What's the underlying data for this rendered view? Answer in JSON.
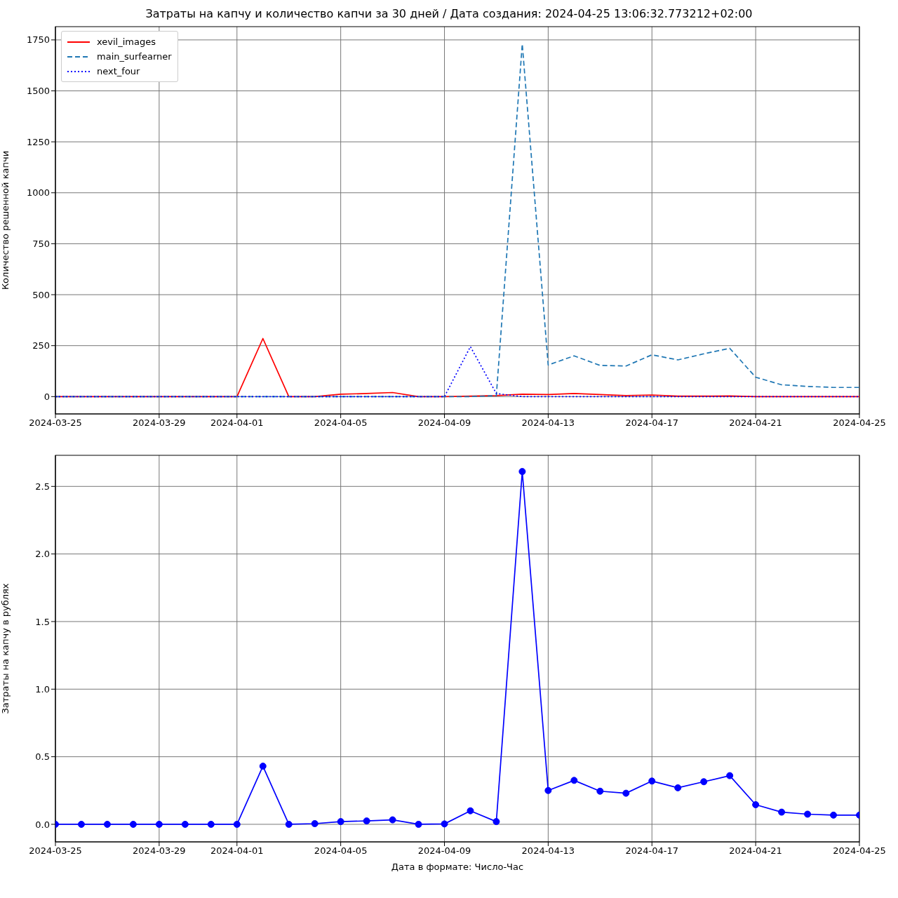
{
  "chart_data": [
    {
      "type": "line",
      "title": "Затраты на капчу и количество капчи за 30 дней / Дата создания:  2024-04-25 13:06:32.773212+02:00",
      "ylabel": "Количество решенной капчи",
      "x": [
        "2024-03-25",
        "2024-03-26",
        "2024-03-27",
        "2024-03-28",
        "2024-03-29",
        "2024-03-30",
        "2024-03-31",
        "2024-04-01",
        "2024-04-02",
        "2024-04-03",
        "2024-04-04",
        "2024-04-05",
        "2024-04-06",
        "2024-04-07",
        "2024-04-08",
        "2024-04-09",
        "2024-04-10",
        "2024-04-11",
        "2024-04-12",
        "2024-04-13",
        "2024-04-14",
        "2024-04-15",
        "2024-04-16",
        "2024-04-17",
        "2024-04-18",
        "2024-04-19",
        "2024-04-20",
        "2024-04-21",
        "2024-04-22",
        "2024-04-23",
        "2024-04-24",
        "2024-04-25"
      ],
      "series": [
        {
          "name": "xevil_images",
          "color": "#ff0000",
          "line_style": "solid",
          "values": [
            0,
            0,
            0,
            0,
            0,
            0,
            0,
            0,
            285,
            0,
            0,
            12,
            15,
            20,
            0,
            0,
            2,
            5,
            12,
            10,
            15,
            10,
            5,
            8,
            2,
            2,
            3,
            0,
            0,
            0,
            0,
            0
          ]
        },
        {
          "name": "main_surfearner",
          "color": "#1f77b4",
          "line_style": "dashed",
          "values": [
            0,
            0,
            0,
            0,
            0,
            0,
            0,
            0,
            0,
            0,
            0,
            0,
            0,
            0,
            0,
            0,
            0,
            5,
            1730,
            155,
            200,
            153,
            150,
            205,
            180,
            210,
            237,
            95,
            58,
            50,
            45,
            45
          ]
        },
        {
          "name": "next_four",
          "color": "#0000ff",
          "line_style": "dotted",
          "values": [
            0,
            0,
            0,
            0,
            0,
            0,
            0,
            0,
            0,
            0,
            0,
            0,
            0,
            0,
            0,
            0,
            245,
            15,
            0,
            0,
            0,
            0,
            0,
            0,
            0,
            0,
            0,
            0,
            0,
            0,
            0,
            0
          ]
        }
      ],
      "xlim": [
        "2024-03-25",
        "2024-04-25"
      ],
      "xticks": [
        "2024-03-25",
        "2024-03-29",
        "2024-04-01",
        "2024-04-05",
        "2024-04-09",
        "2024-04-13",
        "2024-04-17",
        "2024-04-21",
        "2024-04-25"
      ],
      "ylim": [
        -85,
        1815
      ],
      "yticks": [
        0,
        250,
        500,
        750,
        1000,
        1250,
        1500,
        1750
      ],
      "grid": true,
      "legend": "top left",
      "marker": "none"
    },
    {
      "type": "line",
      "xlabel": "Дата в формате: Число-Час",
      "ylabel": "Затраты на капчу в рублях",
      "x": [
        "2024-03-25",
        "2024-03-26",
        "2024-03-27",
        "2024-03-28",
        "2024-03-29",
        "2024-03-30",
        "2024-03-31",
        "2024-04-01",
        "2024-04-02",
        "2024-04-03",
        "2024-04-04",
        "2024-04-05",
        "2024-04-06",
        "2024-04-07",
        "2024-04-08",
        "2024-04-09",
        "2024-04-10",
        "2024-04-11",
        "2024-04-12",
        "2024-04-13",
        "2024-04-14",
        "2024-04-15",
        "2024-04-16",
        "2024-04-17",
        "2024-04-18",
        "2024-04-19",
        "2024-04-20",
        "2024-04-21",
        "2024-04-22",
        "2024-04-23",
        "2024-04-24",
        "2024-04-25"
      ],
      "series": [
        {
          "color": "#0000ff",
          "line_style": "solid",
          "values": [
            0,
            0,
            0,
            0,
            0,
            0,
            0,
            0,
            0.43,
            0,
            0.005,
            0.02,
            0.025,
            0.033,
            0,
            0.003,
            0.1,
            0.02,
            2.61,
            0.25,
            0.325,
            0.245,
            0.23,
            0.32,
            0.27,
            0.315,
            0.36,
            0.145,
            0.09,
            0.075,
            0.068,
            0.068
          ]
        }
      ],
      "xlim": [
        "2024-03-25",
        "2024-04-25"
      ],
      "xticks": [
        "2024-03-25",
        "2024-03-29",
        "2024-04-01",
        "2024-04-05",
        "2024-04-09",
        "2024-04-13",
        "2024-04-17",
        "2024-04-21",
        "2024-04-25"
      ],
      "ylim": [
        -0.13,
        2.73
      ],
      "yticks": [
        {
          "value": 0,
          "label": "0.0"
        },
        {
          "value": 0.5,
          "label": "0.5"
        },
        {
          "value": 1,
          "label": "1.0"
        },
        {
          "value": 1.5,
          "label": "1.5"
        },
        {
          "value": 2,
          "label": "2.0"
        },
        {
          "value": 2.5,
          "label": "2.5"
        }
      ],
      "grid": true,
      "legend": false,
      "marker": "circle"
    }
  ]
}
